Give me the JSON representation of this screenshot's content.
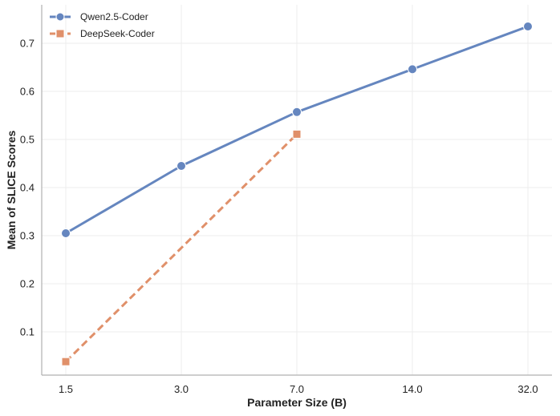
{
  "chart_data": {
    "type": "line",
    "categories": [
      "1.5",
      "3.0",
      "7.0",
      "14.0",
      "32.0"
    ],
    "series": [
      {
        "name": "Qwen2.5-Coder",
        "values": [
          0.305,
          0.445,
          0.557,
          0.646,
          0.735
        ],
        "color": "#6586bf",
        "line_style": "solid",
        "marker": "circle"
      },
      {
        "name": "DeepSeek-Coder",
        "values": [
          0.038,
          null,
          0.511,
          null,
          null
        ],
        "color": "#e0906a",
        "line_style": "dashed",
        "marker": "square"
      }
    ],
    "title": "",
    "xlabel": "Parameter Size (B)",
    "ylabel": "Mean of SLICE Scores",
    "ylim": [
      0.01,
      0.78
    ],
    "yticks": [
      "0.1",
      "0.2",
      "0.3",
      "0.4",
      "0.5",
      "0.6",
      "0.7"
    ],
    "grid": true,
    "legend_position": "top-left"
  }
}
